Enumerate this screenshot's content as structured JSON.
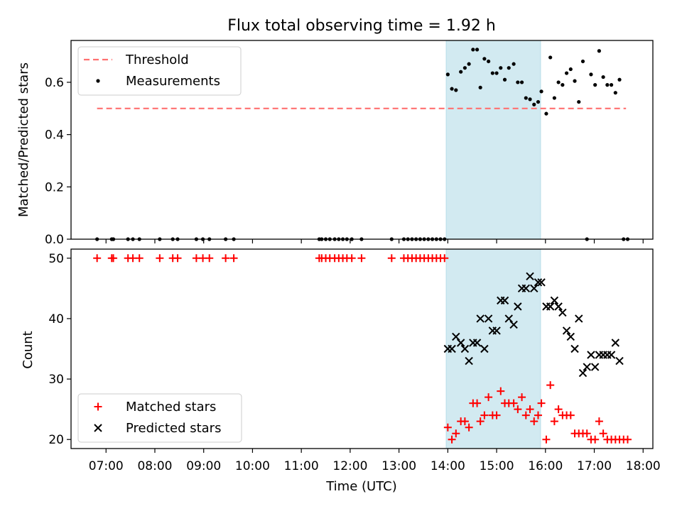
{
  "chart_data": [
    {
      "type": "scatter",
      "title": "Flux total observing time = 1.92 h",
      "xlabel": "",
      "ylabel": "Matched/Predicted stars",
      "xlim": [
        "06:17",
        "18:12"
      ],
      "ylim": [
        0,
        0.76
      ],
      "yticks": [
        0,
        0.2,
        0.4,
        0.6
      ],
      "ytick_labels": [
        "0.0",
        "0.2",
        "0.4",
        "0.6"
      ],
      "shaded_interval": {
        "start": "13:58",
        "end": "15:54",
        "color": "#add8e6"
      },
      "legend_position": "upper-left",
      "series": [
        {
          "name": "Threshold",
          "kind": "dashed-line",
          "color": "#ff7070",
          "points": [
            [
              "06:49",
              0.5
            ],
            [
              "17:39",
              0.5
            ]
          ]
        },
        {
          "name": "Measurements",
          "kind": "points",
          "color": "#000000",
          "points": [
            [
              "06:49",
              0
            ],
            [
              "07:07",
              0
            ],
            [
              "07:09",
              0
            ],
            [
              "07:27",
              0
            ],
            [
              "07:33",
              0
            ],
            [
              "07:41",
              0
            ],
            [
              "08:06",
              0
            ],
            [
              "08:22",
              0
            ],
            [
              "08:28",
              0
            ],
            [
              "08:51",
              0
            ],
            [
              "08:59",
              0
            ],
            [
              "09:07",
              0
            ],
            [
              "09:27",
              0
            ],
            [
              "09:37",
              0
            ],
            [
              "11:22",
              0
            ],
            [
              "11:25",
              0
            ],
            [
              "11:30",
              0
            ],
            [
              "11:35",
              0
            ],
            [
              "11:41",
              0
            ],
            [
              "11:46",
              0
            ],
            [
              "11:51",
              0
            ],
            [
              "11:56",
              0
            ],
            [
              "12:02",
              0
            ],
            [
              "12:14",
              0
            ],
            [
              "12:51",
              0
            ],
            [
              "13:06",
              0
            ],
            [
              "13:11",
              0
            ],
            [
              "13:16",
              0
            ],
            [
              "13:21",
              0
            ],
            [
              "13:26",
              0
            ],
            [
              "13:31",
              0
            ],
            [
              "13:36",
              0
            ],
            [
              "13:41",
              0
            ],
            [
              "13:46",
              0
            ],
            [
              "13:51",
              0
            ],
            [
              "13:56",
              0
            ],
            [
              "14:00",
              0.63
            ],
            [
              "14:05",
              0.575
            ],
            [
              "14:10",
              0.57
            ],
            [
              "14:16",
              0.64
            ],
            [
              "14:21",
              0.655
            ],
            [
              "14:26",
              0.67
            ],
            [
              "14:31",
              0.725
            ],
            [
              "14:36",
              0.725
            ],
            [
              "14:40",
              0.58
            ],
            [
              "14:45",
              0.69
            ],
            [
              "14:50",
              0.68
            ],
            [
              "14:55",
              0.635
            ],
            [
              "15:00",
              0.635
            ],
            [
              "15:05",
              0.655
            ],
            [
              "15:10",
              0.61
            ],
            [
              "15:15",
              0.655
            ],
            [
              "15:21",
              0.67
            ],
            [
              "15:26",
              0.6
            ],
            [
              "15:31",
              0.6
            ],
            [
              "15:36",
              0.54
            ],
            [
              "15:41",
              0.535
            ],
            [
              "15:46",
              0.515
            ],
            [
              "15:51",
              0.525
            ],
            [
              "15:55",
              0.565
            ],
            [
              "16:01",
              0.48
            ],
            [
              "16:06",
              0.695
            ],
            [
              "16:11",
              0.54
            ],
            [
              "16:16",
              0.6
            ],
            [
              "16:21",
              0.59
            ],
            [
              "16:26",
              0.635
            ],
            [
              "16:31",
              0.65
            ],
            [
              "16:36",
              0.605
            ],
            [
              "16:41",
              0.525
            ],
            [
              "16:46",
              0.68
            ],
            [
              "16:51",
              0
            ],
            [
              "16:56",
              0.63
            ],
            [
              "17:01",
              0.59
            ],
            [
              "17:06",
              0.72
            ],
            [
              "17:11",
              0.62
            ],
            [
              "17:16",
              0.59
            ],
            [
              "17:21",
              0.59
            ],
            [
              "17:26",
              0.56
            ],
            [
              "17:31",
              0.61
            ],
            [
              "17:36",
              0
            ],
            [
              "17:41",
              0
            ]
          ]
        }
      ]
    },
    {
      "type": "scatter",
      "title": "",
      "xlabel": "Time (UTC)",
      "ylabel": "Count",
      "xlim": [
        "06:17",
        "18:12"
      ],
      "ylim": [
        18.5,
        51.5
      ],
      "xticks": [
        "07:00",
        "08:00",
        "09:00",
        "10:00",
        "11:00",
        "12:00",
        "13:00",
        "14:00",
        "15:00",
        "16:00",
        "17:00",
        "18:00"
      ],
      "yticks": [
        20,
        30,
        40,
        50
      ],
      "ytick_labels": [
        "20",
        "30",
        "40",
        "50"
      ],
      "shaded_interval": {
        "start": "13:58",
        "end": "15:54",
        "color": "#add8e6"
      },
      "legend_position": "lower-left",
      "series": [
        {
          "name": "Matched stars",
          "kind": "plus",
          "color": "#ff0000",
          "points": [
            [
              "06:49",
              50
            ],
            [
              "07:07",
              50
            ],
            [
              "07:09",
              50
            ],
            [
              "07:27",
              50
            ],
            [
              "07:33",
              50
            ],
            [
              "07:41",
              50
            ],
            [
              "08:06",
              50
            ],
            [
              "08:22",
              50
            ],
            [
              "08:28",
              50
            ],
            [
              "08:51",
              50
            ],
            [
              "08:59",
              50
            ],
            [
              "09:07",
              50
            ],
            [
              "09:27",
              50
            ],
            [
              "09:37",
              50
            ],
            [
              "11:22",
              50
            ],
            [
              "11:25",
              50
            ],
            [
              "11:30",
              50
            ],
            [
              "11:35",
              50
            ],
            [
              "11:41",
              50
            ],
            [
              "11:46",
              50
            ],
            [
              "11:51",
              50
            ],
            [
              "11:56",
              50
            ],
            [
              "12:02",
              50
            ],
            [
              "12:14",
              50
            ],
            [
              "12:51",
              50
            ],
            [
              "13:06",
              50
            ],
            [
              "13:11",
              50
            ],
            [
              "13:16",
              50
            ],
            [
              "13:21",
              50
            ],
            [
              "13:26",
              50
            ],
            [
              "13:31",
              50
            ],
            [
              "13:36",
              50
            ],
            [
              "13:41",
              50
            ],
            [
              "13:46",
              50
            ],
            [
              "13:51",
              50
            ],
            [
              "13:56",
              50
            ],
            [
              "14:00",
              22
            ],
            [
              "14:05",
              20
            ],
            [
              "14:10",
              21
            ],
            [
              "14:16",
              23
            ],
            [
              "14:21",
              23
            ],
            [
              "14:26",
              22
            ],
            [
              "14:31",
              26
            ],
            [
              "14:36",
              26
            ],
            [
              "14:40",
              23
            ],
            [
              "14:45",
              24
            ],
            [
              "14:50",
              27
            ],
            [
              "14:55",
              24
            ],
            [
              "15:00",
              24
            ],
            [
              "15:05",
              28
            ],
            [
              "15:10",
              26
            ],
            [
              "15:15",
              26
            ],
            [
              "15:21",
              26
            ],
            [
              "15:26",
              25
            ],
            [
              "15:31",
              27
            ],
            [
              "15:36",
              24
            ],
            [
              "15:41",
              25
            ],
            [
              "15:46",
              23
            ],
            [
              "15:51",
              24
            ],
            [
              "15:55",
              26
            ],
            [
              "16:01",
              20
            ],
            [
              "16:06",
              29
            ],
            [
              "16:11",
              23
            ],
            [
              "16:16",
              25
            ],
            [
              "16:21",
              24
            ],
            [
              "16:26",
              24
            ],
            [
              "16:31",
              24
            ],
            [
              "16:36",
              21
            ],
            [
              "16:41",
              21
            ],
            [
              "16:46",
              21
            ],
            [
              "16:51",
              21
            ],
            [
              "16:56",
              20
            ],
            [
              "17:01",
              20
            ],
            [
              "17:06",
              23
            ],
            [
              "17:11",
              21
            ],
            [
              "17:16",
              20
            ],
            [
              "17:21",
              20
            ],
            [
              "17:26",
              20
            ],
            [
              "17:31",
              20
            ],
            [
              "17:36",
              20
            ],
            [
              "17:41",
              20
            ]
          ]
        },
        {
          "name": "Predicted stars",
          "kind": "cross",
          "color": "#000000",
          "points": [
            [
              "14:00",
              35
            ],
            [
              "14:05",
              35
            ],
            [
              "14:10",
              37
            ],
            [
              "14:16",
              36
            ],
            [
              "14:21",
              35
            ],
            [
              "14:26",
              33
            ],
            [
              "14:31",
              36
            ],
            [
              "14:36",
              36
            ],
            [
              "14:40",
              40
            ],
            [
              "14:45",
              35
            ],
            [
              "14:50",
              40
            ],
            [
              "14:55",
              38
            ],
            [
              "15:00",
              38
            ],
            [
              "15:05",
              43
            ],
            [
              "15:10",
              43
            ],
            [
              "15:15",
              40
            ],
            [
              "15:21",
              39
            ],
            [
              "15:26",
              42
            ],
            [
              "15:31",
              45
            ],
            [
              "15:36",
              45
            ],
            [
              "15:41",
              47
            ],
            [
              "15:46",
              45
            ],
            [
              "15:51",
              46
            ],
            [
              "15:55",
              46
            ],
            [
              "16:01",
              42
            ],
            [
              "16:06",
              42
            ],
            [
              "16:11",
              43
            ],
            [
              "16:16",
              42
            ],
            [
              "16:21",
              41
            ],
            [
              "16:26",
              38
            ],
            [
              "16:31",
              37
            ],
            [
              "16:36",
              35
            ],
            [
              "16:41",
              40
            ],
            [
              "16:46",
              31
            ],
            [
              "16:51",
              32
            ],
            [
              "16:56",
              34
            ],
            [
              "17:01",
              32
            ],
            [
              "17:06",
              34
            ],
            [
              "17:11",
              34
            ],
            [
              "17:16",
              34
            ],
            [
              "17:21",
              34
            ],
            [
              "17:26",
              36
            ],
            [
              "17:31",
              33
            ]
          ]
        }
      ]
    }
  ]
}
